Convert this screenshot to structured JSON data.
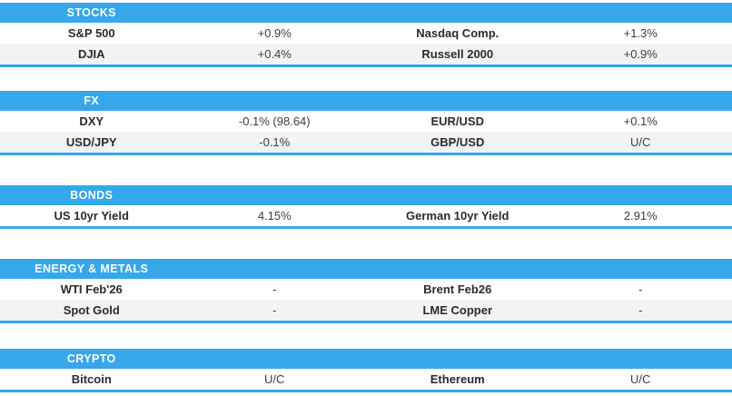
{
  "page": {
    "accent_color": "#35a7ea",
    "row_alt_color": "#f2f3f4",
    "label_color": "#2b2b2b",
    "value_color": "#3c3c3c"
  },
  "sections": [
    {
      "title": "STOCKS",
      "rows": [
        {
          "cells": [
            "S&P 500",
            "+0.9%",
            "Nasdaq Comp.",
            "+1.3%"
          ]
        },
        {
          "cells": [
            "DJIA",
            "+0.4%",
            "Russell 2000",
            "+0.9%"
          ]
        }
      ]
    },
    {
      "title": "FX",
      "rows": [
        {
          "cells": [
            "DXY",
            "-0.1% (98.64)",
            "EUR/USD",
            "+0.1%"
          ]
        },
        {
          "cells": [
            "USD/JPY",
            "-0.1%",
            "GBP/USD",
            "U/C"
          ]
        }
      ]
    },
    {
      "title": "BONDS",
      "rows": [
        {
          "cells": [
            "US 10yr Yield",
            "4.15%",
            "German 10yr Yield",
            "2.91%"
          ]
        }
      ]
    },
    {
      "title": "ENERGY & METALS",
      "rows": [
        {
          "cells": [
            "WTI Feb'26",
            "-",
            "Brent Feb26",
            "-"
          ]
        },
        {
          "cells": [
            "Spot Gold",
            "-",
            "LME Copper",
            "-"
          ]
        }
      ]
    },
    {
      "title": "CRYPTO",
      "rows": [
        {
          "cells": [
            "Bitcoin",
            "U/C",
            "Ethereum",
            "U/C"
          ]
        }
      ]
    }
  ]
}
